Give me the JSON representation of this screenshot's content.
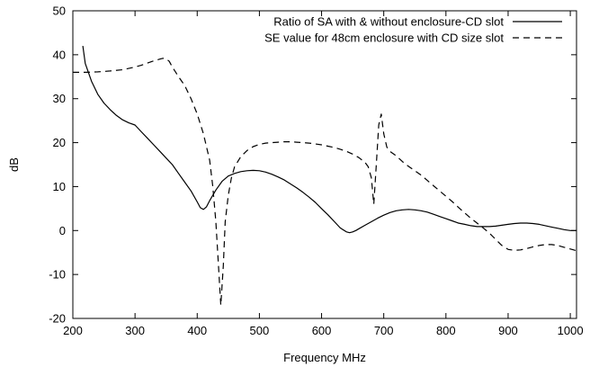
{
  "chart_data": {
    "type": "line",
    "title": "",
    "xlabel": "Frequency MHz",
    "ylabel": "dB",
    "xlim": [
      200,
      1010
    ],
    "ylim": [
      -20,
      50
    ],
    "xticks": [
      200,
      300,
      400,
      500,
      600,
      700,
      800,
      900,
      1000
    ],
    "yticks": [
      -20,
      -10,
      0,
      10,
      20,
      30,
      40,
      50
    ],
    "grid": false,
    "legend_position": "top-right",
    "series": [
      {
        "name": "Ratio of SA with & without enclosure-CD slot",
        "style": "solid",
        "color": "#000000",
        "x": [
          216,
          220,
          230,
          240,
          250,
          260,
          270,
          280,
          290,
          300,
          310,
          320,
          330,
          340,
          350,
          360,
          370,
          380,
          390,
          400,
          405,
          410,
          415,
          420,
          430,
          440,
          450,
          460,
          470,
          480,
          490,
          500,
          510,
          520,
          530,
          540,
          550,
          560,
          570,
          580,
          590,
          600,
          610,
          620,
          630,
          640,
          645,
          650,
          655,
          660,
          670,
          680,
          690,
          700,
          710,
          720,
          730,
          740,
          750,
          760,
          770,
          780,
          790,
          800,
          810,
          820,
          830,
          840,
          850,
          860,
          870,
          880,
          890,
          900,
          910,
          920,
          930,
          940,
          950,
          960,
          970,
          980,
          990,
          1000,
          1010
        ],
        "y": [
          42,
          38,
          34,
          31,
          29,
          27.5,
          26.2,
          25.2,
          24.5,
          24,
          22.5,
          21,
          19.5,
          18,
          16.5,
          15,
          13,
          11,
          9,
          6.5,
          5.2,
          4.8,
          5.4,
          6.8,
          9.2,
          11.2,
          12.4,
          13,
          13.4,
          13.6,
          13.7,
          13.6,
          13.3,
          12.8,
          12.2,
          11.5,
          10.6,
          9.7,
          8.7,
          7.6,
          6.4,
          5,
          3.6,
          2.1,
          0.6,
          -0.3,
          -0.5,
          -0.3,
          0,
          0.4,
          1.2,
          2,
          2.8,
          3.5,
          4.1,
          4.5,
          4.7,
          4.8,
          4.7,
          4.5,
          4.2,
          3.7,
          3.2,
          2.7,
          2.2,
          1.7,
          1.4,
          1.1,
          0.9,
          0.9,
          0.9,
          1,
          1.2,
          1.4,
          1.6,
          1.7,
          1.7,
          1.6,
          1.4,
          1.1,
          0.8,
          0.5,
          0.2,
          0,
          0
        ]
      },
      {
        "name": "SE value for 48cm enclosure with CD size slot",
        "style": "dashed",
        "color": "#000000",
        "x": [
          200,
          220,
          240,
          260,
          280,
          300,
          310,
          320,
          330,
          340,
          345,
          350,
          355,
          360,
          370,
          380,
          390,
          400,
          410,
          420,
          425,
          430,
          435,
          438,
          442,
          445,
          450,
          455,
          460,
          470,
          480,
          490,
          500,
          510,
          520,
          530,
          540,
          550,
          560,
          570,
          580,
          590,
          600,
          610,
          620,
          630,
          640,
          650,
          660,
          670,
          675,
          680,
          684,
          688,
          692,
          696,
          700,
          705,
          710,
          720,
          730,
          740,
          750,
          760,
          770,
          780,
          790,
          800,
          810,
          820,
          830,
          840,
          850,
          860,
          870,
          880,
          890,
          900,
          910,
          920,
          930,
          940,
          950,
          960,
          970,
          980,
          990,
          1000,
          1010
        ],
        "y": [
          36,
          36,
          36.1,
          36.3,
          36.6,
          37.2,
          37.6,
          38.1,
          38.6,
          39,
          39.2,
          39.1,
          38.5,
          37.2,
          35,
          33,
          30,
          26.5,
          22,
          16,
          10,
          2,
          -10,
          -17,
          -8,
          2,
          8,
          12,
          14.5,
          16.8,
          18.2,
          19.1,
          19.6,
          19.9,
          20,
          20.1,
          20.2,
          20.2,
          20.1,
          20,
          19.9,
          19.7,
          19.5,
          19.2,
          18.9,
          18.5,
          18,
          17.4,
          16.6,
          15.5,
          14.5,
          12,
          6,
          15,
          24,
          26.5,
          22,
          19,
          18,
          17,
          15.7,
          14.6,
          13.6,
          12.6,
          11.4,
          10.2,
          9,
          7.8,
          6.6,
          5.3,
          4,
          2.8,
          1.7,
          0.6,
          -0.6,
          -2,
          -3.4,
          -4.3,
          -4.5,
          -4.4,
          -4.1,
          -3.7,
          -3.4,
          -3.2,
          -3.2,
          -3.4,
          -3.8,
          -4.2,
          -4.6
        ]
      }
    ]
  }
}
